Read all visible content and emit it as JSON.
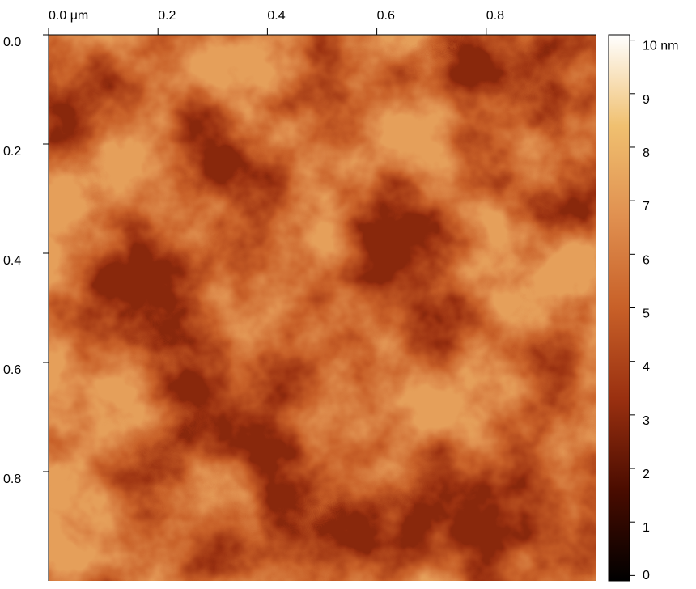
{
  "chart_data": {
    "type": "image",
    "xlim": [
      0,
      1.0
    ],
    "ylim": [
      0,
      1.0
    ],
    "xticks": [
      {
        "value": 0,
        "label": "0.0 μm"
      },
      0.2,
      0.4,
      0.6,
      0.8
    ],
    "yticks": [
      {
        "value": 0,
        "label": "0.0"
      },
      0.2,
      0.4,
      0.6,
      0.8
    ],
    "clim": [
      -0.1,
      10.1
    ],
    "cticks": [
      0,
      1,
      2,
      3,
      4,
      5,
      6,
      7,
      8,
      9,
      {
        "value": 10,
        "label": "10 nm"
      }
    ],
    "colormap": [
      "#000000",
      "#4a0c00",
      "#9a3010",
      "#c86028",
      "#e09050",
      "#f0c070",
      "#ffffff"
    ]
  }
}
